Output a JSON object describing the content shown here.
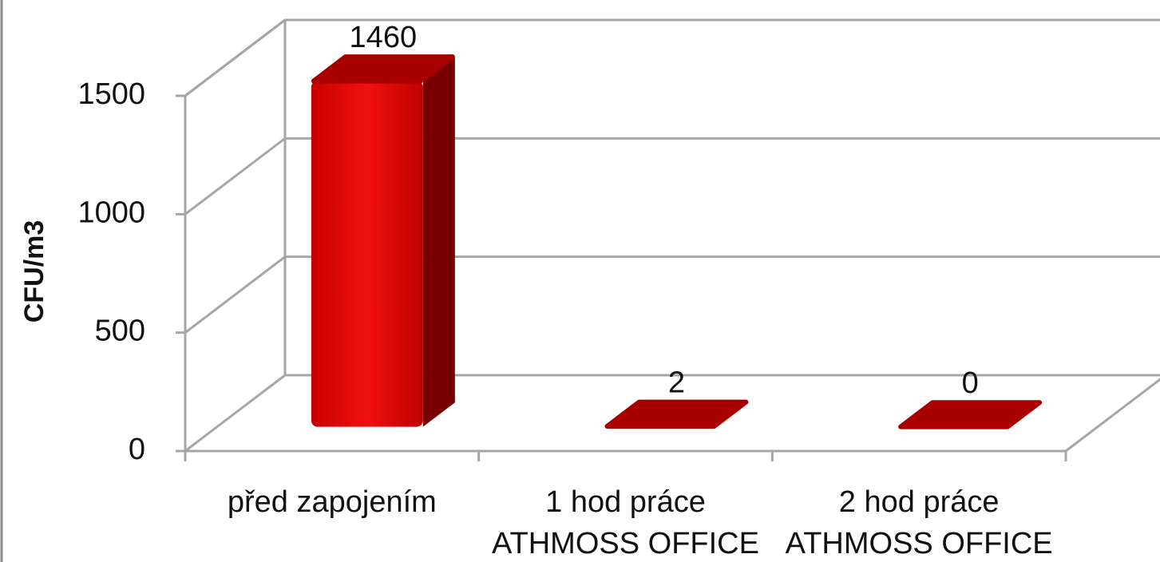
{
  "chart_data": {
    "type": "bar3d",
    "y_label": "CFU/m3",
    "categories": [
      "před zapojením",
      "1 hod práce ATHMOSS OFFICE",
      "2 hod práce ATHMOSS OFFICE"
    ],
    "values": [
      1460,
      2,
      0
    ],
    "color": "#d40000",
    "ylim": [
      0,
      1500
    ],
    "yticks": [
      0,
      500,
      1000,
      1500
    ],
    "grid": true
  }
}
